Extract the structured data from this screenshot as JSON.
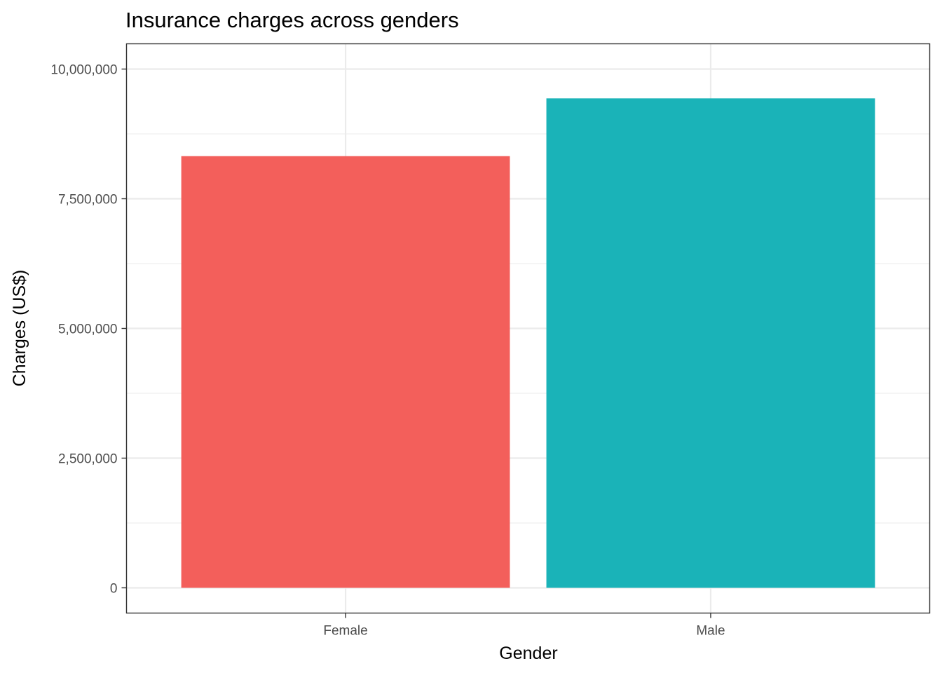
{
  "chart_data": {
    "type": "bar",
    "title": "Insurance charges across genders",
    "xlabel": "Gender",
    "ylabel": "Charges (US$)",
    "categories": [
      "Female",
      "Male"
    ],
    "values": [
      8321061,
      9434764
    ],
    "colors": [
      "#F35F5B",
      "#1AB3B8"
    ],
    "ylim": [
      0,
      10000000
    ],
    "yticks": [
      0,
      2500000,
      5000000,
      7500000,
      10000000
    ],
    "ytick_labels": [
      "0",
      "2,500,000",
      "5,000,000",
      "7,500,000",
      "10,000,000"
    ],
    "grid": true,
    "legend": "none"
  }
}
